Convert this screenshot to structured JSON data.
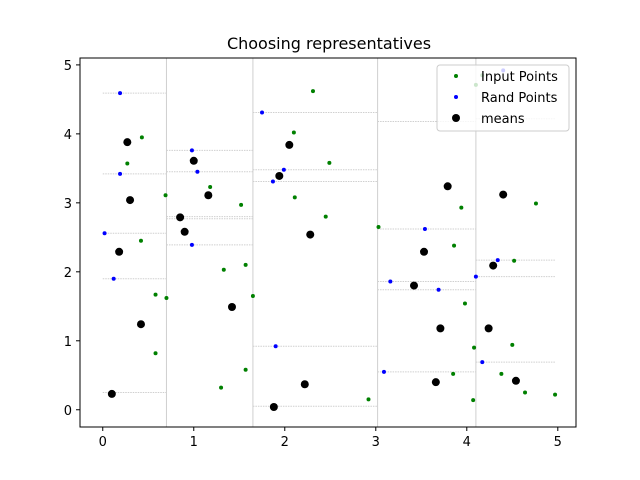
{
  "chart_data": {
    "type": "scatter",
    "title": "Choosing representatives",
    "xlim": [
      -0.25,
      5.2
    ],
    "ylim": [
      -0.25,
      5.1
    ],
    "xticks": [
      "0",
      "1",
      "2",
      "3",
      "4",
      "5"
    ],
    "yticks": [
      "0",
      "1",
      "2",
      "3",
      "4",
      "5"
    ],
    "grid": false,
    "legend_position": "top-right",
    "series": [
      {
        "name": "Input Points",
        "color": "#008000",
        "marker_size": "small",
        "points": [
          [
            0.27,
            3.57
          ],
          [
            0.43,
            3.95
          ],
          [
            0.42,
            2.45
          ],
          [
            0.58,
            1.67
          ],
          [
            0.58,
            0.82
          ],
          [
            0.7,
            1.62
          ],
          [
            0.69,
            3.11
          ],
          [
            1.18,
            3.23
          ],
          [
            1.52,
            2.97
          ],
          [
            1.33,
            2.03
          ],
          [
            1.57,
            2.1
          ],
          [
            1.3,
            0.32
          ],
          [
            1.57,
            0.58
          ],
          [
            1.65,
            1.65
          ],
          [
            2.1,
            4.02
          ],
          [
            2.11,
            3.08
          ],
          [
            2.31,
            4.62
          ],
          [
            2.49,
            3.58
          ],
          [
            2.45,
            2.8
          ],
          [
            2.92,
            0.15
          ],
          [
            3.03,
            2.65
          ],
          [
            3.86,
            2.38
          ],
          [
            3.94,
            2.93
          ],
          [
            3.98,
            1.54
          ],
          [
            3.85,
            0.52
          ],
          [
            4.08,
            0.9
          ],
          [
            4.07,
            0.14
          ],
          [
            4.52,
            2.16
          ],
          [
            4.5,
            0.94
          ],
          [
            4.38,
            0.52
          ],
          [
            4.64,
            0.25
          ],
          [
            4.76,
            2.99
          ],
          [
            4.97,
            0.22
          ],
          [
            4.17,
            4.85
          ],
          [
            4.1,
            4.71
          ]
        ]
      },
      {
        "name": "Rand Points",
        "color": "#0000ff",
        "marker_size": "small",
        "points": [
          [
            0.19,
            4.59
          ],
          [
            0.19,
            3.42
          ],
          [
            0.02,
            2.56
          ],
          [
            0.12,
            1.9
          ],
          [
            0.98,
            3.76
          ],
          [
            1.04,
            3.45
          ],
          [
            0.98,
            2.39
          ],
          [
            1.75,
            4.31
          ],
          [
            1.99,
            3.48
          ],
          [
            1.87,
            3.31
          ],
          [
            1.9,
            0.92
          ],
          [
            3.16,
            1.86
          ],
          [
            3.54,
            2.62
          ],
          [
            3.69,
            1.74
          ],
          [
            3.09,
            0.55
          ],
          [
            4.1,
            1.93
          ],
          [
            4.34,
            2.17
          ],
          [
            4.17,
            0.69
          ],
          [
            4.4,
            4.92
          ]
        ]
      },
      {
        "name": "means",
        "color": "#000000",
        "marker_size": "large",
        "points": [
          [
            0.27,
            3.88
          ],
          [
            0.3,
            3.04
          ],
          [
            0.18,
            2.29
          ],
          [
            0.42,
            1.24
          ],
          [
            0.1,
            0.23
          ],
          [
            1.0,
            3.61
          ],
          [
            1.16,
            3.11
          ],
          [
            0.85,
            2.79
          ],
          [
            0.9,
            2.58
          ],
          [
            1.42,
            1.49
          ],
          [
            2.05,
            3.84
          ],
          [
            1.94,
            3.39
          ],
          [
            2.28,
            2.54
          ],
          [
            2.22,
            0.37
          ],
          [
            1.88,
            0.04
          ],
          [
            3.79,
            3.24
          ],
          [
            4.4,
            3.12
          ],
          [
            3.53,
            2.29
          ],
          [
            3.42,
            1.8
          ],
          [
            3.71,
            1.18
          ],
          [
            3.66,
            0.4
          ],
          [
            4.29,
            2.09
          ],
          [
            4.24,
            1.18
          ],
          [
            4.54,
            0.42
          ]
        ]
      }
    ]
  }
}
